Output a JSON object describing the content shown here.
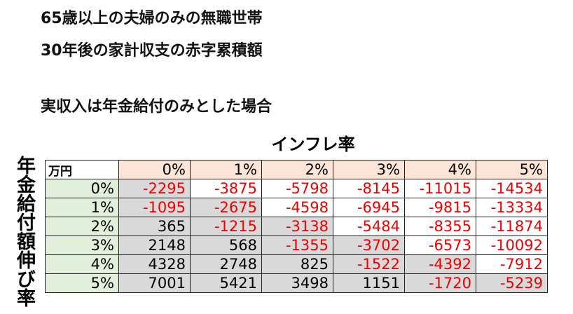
{
  "titles": [
    "65歳以上の夫婦のみの無職世帯",
    "30年後の家計収支の赤字累積額",
    "実収入は年金給付のみとした場合"
  ],
  "column_axis_label": "インフレ率",
  "row_axis_label": "年金給付額伸び率",
  "table": {
    "unit": "万円",
    "columns": [
      "0%",
      "1%",
      "2%",
      "3%",
      "4%",
      "5%"
    ],
    "rows": [
      {
        "label": "0%",
        "values": [
          "-2295",
          "-3875",
          "-5798",
          "-8145",
          "-11015",
          "-14534"
        ]
      },
      {
        "label": "1%",
        "values": [
          "-1095",
          "-2675",
          "-4598",
          "-6945",
          "-9815",
          "-13334"
        ]
      },
      {
        "label": "2%",
        "values": [
          "365",
          "-1215",
          "-3138",
          "-5484",
          "-8355",
          "-11874"
        ]
      },
      {
        "label": "3%",
        "values": [
          "2148",
          "568",
          "-1355",
          "-3702",
          "-6573",
          "-10092"
        ]
      },
      {
        "label": "4%",
        "values": [
          "4328",
          "2748",
          "825",
          "-1522",
          "-4392",
          "-7912"
        ]
      },
      {
        "label": "5%",
        "values": [
          "7001",
          "5421",
          "3498",
          "1151",
          "-1720",
          "-5239"
        ]
      }
    ]
  },
  "colors": {
    "negative": "#e00000",
    "column_header_bg": "#fce4d6",
    "row_header_bg": "#e2efda",
    "highlight_bg": "#d9d9d9"
  }
}
